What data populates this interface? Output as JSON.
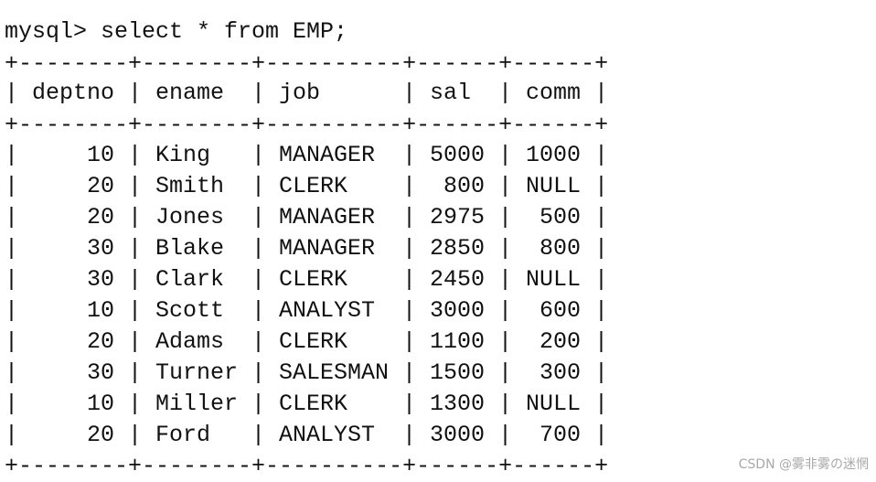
{
  "prompt": "mysql> select * from EMP;",
  "table": {
    "border": "+--------+--------+----------+------+------+",
    "separator": "|",
    "columns": [
      "deptno",
      "ename",
      "job",
      "sal",
      "comm"
    ],
    "rows": [
      [
        10,
        "King",
        "MANAGER",
        5000,
        1000
      ],
      [
        20,
        "Smith",
        "CLERK",
        800,
        "NULL"
      ],
      [
        20,
        "Jones",
        "MANAGER",
        2975,
        500
      ],
      [
        30,
        "Blake",
        "MANAGER",
        2850,
        800
      ],
      [
        30,
        "Clark",
        "CLERK",
        2450,
        "NULL"
      ],
      [
        10,
        "Scott",
        "ANALYST",
        3000,
        600
      ],
      [
        20,
        "Adams",
        "CLERK",
        1100,
        200
      ],
      [
        30,
        "Turner",
        "SALESMAN",
        1500,
        300
      ],
      [
        10,
        "Miller",
        "CLERK",
        1300,
        "NULL"
      ],
      [
        20,
        "Ford",
        "ANALYST",
        3000,
        700
      ]
    ]
  },
  "watermark": "CSDN @雾非雾の迷惘"
}
